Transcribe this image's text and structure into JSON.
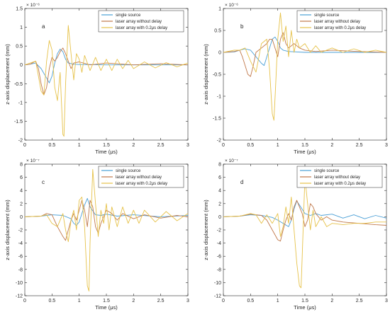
{
  "colors": {
    "single": "#4a9fd6",
    "nodelay": "#c0784a",
    "delay": "#e6c24a"
  },
  "legend_entries": [
    "single source",
    "laser array without delay",
    "laser array with 0.2μs delay"
  ],
  "chart_data": [
    {
      "type": "line",
      "panel_label": "a",
      "exponent": "× 10⁻⁶",
      "xlabel": "Time (μs)",
      "ylabel": "z-axis displacement (mm)",
      "xlim": [
        0,
        3
      ],
      "ylim": [
        -2,
        1.5
      ],
      "xticks": [
        "0",
        "0.5",
        "1",
        "1.5",
        "2",
        "2.5",
        "3"
      ],
      "yticks": [
        "1.5",
        "1",
        "0.5",
        "0",
        "-0.5",
        "-1",
        "-1.5",
        "-2"
      ],
      "legend_position": "top-right",
      "series": [
        {
          "name": "single source",
          "x": [
            0,
            0.1,
            0.2,
            0.3,
            0.4,
            0.45,
            0.5,
            0.55,
            0.6,
            0.65,
            0.7,
            0.75,
            0.8,
            0.9,
            1.0,
            1.2,
            1.5,
            2.0,
            2.5,
            3.0
          ],
          "y": [
            0,
            0.02,
            0.05,
            -0.1,
            -0.35,
            -0.48,
            -0.3,
            0.05,
            0.3,
            0.42,
            0.35,
            0.15,
            0.05,
            0.02,
            0.01,
            0.01,
            0.0,
            0.0,
            0.0,
            0.0
          ]
        },
        {
          "name": "laser array without delay",
          "x": [
            0,
            0.1,
            0.2,
            0.25,
            0.3,
            0.35,
            0.4,
            0.45,
            0.5,
            0.55,
            0.6,
            0.65,
            0.7,
            0.75,
            0.8,
            0.85,
            0.9,
            1.0,
            1.2,
            1.5,
            2.0,
            2.5,
            3.0
          ],
          "y": [
            0,
            0.02,
            0.1,
            -0.1,
            -0.5,
            -0.8,
            -0.6,
            -0.1,
            0.2,
            0.1,
            0.2,
            0.35,
            0.45,
            0.3,
            0.1,
            -0.1,
            0.05,
            0.08,
            0.0,
            0.05,
            0.0,
            0.03,
            0.0
          ]
        },
        {
          "name": "laser array with 0.2μs delay",
          "x": [
            0,
            0.1,
            0.2,
            0.25,
            0.3,
            0.35,
            0.4,
            0.45,
            0.5,
            0.55,
            0.6,
            0.65,
            0.7,
            0.72,
            0.75,
            0.8,
            0.85,
            0.9,
            0.95,
            1.0,
            1.05,
            1.1,
            1.2,
            1.3,
            1.4,
            1.5,
            1.6,
            1.7,
            1.8,
            1.9,
            2.0,
            2.2,
            2.4,
            2.6,
            2.8,
            3.0
          ],
          "y": [
            0,
            0.05,
            0.1,
            -0.3,
            -0.7,
            -0.8,
            0.1,
            0.65,
            0.4,
            -0.6,
            -0.95,
            -0.2,
            -1.85,
            -1.9,
            -0.5,
            1.05,
            0.3,
            -0.4,
            0.3,
            0.15,
            -0.2,
            0.25,
            -0.15,
            0.2,
            -0.15,
            0.15,
            -0.15,
            0.15,
            -0.1,
            0.12,
            -0.1,
            0.08,
            -0.08,
            0.06,
            -0.05,
            0.05
          ]
        }
      ]
    },
    {
      "type": "line",
      "panel_label": "b",
      "exponent": "× 10⁻⁶",
      "xlabel": "Time (μs)",
      "ylabel": "z-axis displacement (mm)",
      "xlim": [
        0,
        3
      ],
      "ylim": [
        -2,
        1
      ],
      "xticks": [
        "0",
        "0.5",
        "1",
        "1.5",
        "2",
        "2.5",
        "3"
      ],
      "yticks": [
        "1",
        "0.5",
        "0",
        "-0.5",
        "-1",
        "-1.5",
        "-2"
      ],
      "legend_position": "top-right",
      "series": [
        {
          "name": "single source",
          "x": [
            0,
            0.2,
            0.3,
            0.4,
            0.5,
            0.6,
            0.7,
            0.75,
            0.8,
            0.85,
            0.9,
            0.95,
            1.0,
            1.05,
            1.1,
            1.2,
            1.5,
            2.0,
            2.5,
            3.0
          ],
          "y": [
            0,
            0.01,
            0.05,
            0.08,
            0.05,
            -0.1,
            -0.25,
            -0.3,
            -0.1,
            0.1,
            0.3,
            0.35,
            0.25,
            0.1,
            0.05,
            0.02,
            0.0,
            0.0,
            0.0,
            0.0
          ]
        },
        {
          "name": "laser array without delay",
          "x": [
            0,
            0.2,
            0.3,
            0.35,
            0.4,
            0.45,
            0.5,
            0.55,
            0.6,
            0.7,
            0.8,
            0.85,
            0.9,
            0.95,
            1.0,
            1.05,
            1.1,
            1.15,
            1.2,
            1.3,
            1.4,
            1.5,
            1.7,
            2.0,
            2.5,
            3.0
          ],
          "y": [
            0,
            0.02,
            0.05,
            -0.1,
            -0.3,
            -0.5,
            -0.55,
            -0.3,
            0.0,
            0.1,
            0.2,
            0.3,
            0.3,
            0.1,
            -0.1,
            0.3,
            0.45,
            0.2,
            0.1,
            0.2,
            0.1,
            0.05,
            0.02,
            0.05,
            0.02,
            0.0
          ]
        },
        {
          "name": "laser array with 0.2μs delay",
          "x": [
            0,
            0.2,
            0.3,
            0.4,
            0.5,
            0.6,
            0.7,
            0.8,
            0.85,
            0.9,
            0.93,
            0.96,
            1.0,
            1.05,
            1.1,
            1.15,
            1.2,
            1.25,
            1.3,
            1.35,
            1.4,
            1.5,
            1.6,
            1.7,
            1.8,
            2.0,
            2.2,
            2.4,
            2.6,
            2.8,
            3.0
          ],
          "y": [
            0,
            0.05,
            0.05,
            0.1,
            -0.2,
            -0.45,
            0.2,
            0.3,
            -0.4,
            -1.4,
            -1.55,
            -0.8,
            0.3,
            0.9,
            0.25,
            0.6,
            -0.1,
            0.5,
            0.0,
            0.3,
            0.1,
            0.2,
            0.0,
            0.15,
            0.0,
            0.1,
            0.0,
            0.08,
            0.0,
            0.05,
            0.0
          ]
        }
      ]
    },
    {
      "type": "line",
      "panel_label": "c",
      "exponent": "× 10⁻⁷",
      "xlabel": "Time (μs)",
      "ylabel": "z-axis displacement (mm)",
      "xlim": [
        0,
        3
      ],
      "ylim": [
        -12,
        8
      ],
      "xticks": [
        "0",
        "0.5",
        "1",
        "1.5",
        "2",
        "2.5",
        "3"
      ],
      "yticks": [
        "8",
        "6",
        "4",
        "2",
        "0",
        "-2",
        "-4",
        "-6",
        "-8",
        "-10",
        "-12"
      ],
      "legend_position": "top-right",
      "series": [
        {
          "name": "single source",
          "x": [
            0,
            0.3,
            0.5,
            0.7,
            0.85,
            0.9,
            0.95,
            1.0,
            1.05,
            1.1,
            1.15,
            1.2,
            1.3,
            1.4,
            1.5,
            1.7,
            2.0,
            2.5,
            3.0
          ],
          "y": [
            0,
            0.1,
            0.3,
            0.2,
            -0.3,
            -1.0,
            -1.3,
            -0.8,
            0.5,
            1.8,
            2.8,
            1.5,
            0.3,
            0.2,
            0.4,
            0.1,
            0.3,
            0.0,
            0.2
          ]
        },
        {
          "name": "laser array without delay",
          "x": [
            0,
            0.3,
            0.4,
            0.5,
            0.6,
            0.7,
            0.75,
            0.8,
            0.85,
            0.9,
            0.95,
            1.0,
            1.05,
            1.1,
            1.15,
            1.2,
            1.25,
            1.3,
            1.35,
            1.4,
            1.5,
            1.6,
            1.7,
            1.8,
            2.0,
            2.2,
            2.5,
            2.8,
            3.0
          ],
          "y": [
            0,
            0.1,
            0.5,
            0.3,
            -1.5,
            -3.0,
            -3.6,
            -2.0,
            -0.5,
            0.5,
            -0.5,
            1.0,
            2.5,
            1.0,
            -1.5,
            2.5,
            1.5,
            -1.5,
            -2.5,
            -1.0,
            1.0,
            0.5,
            -0.5,
            0.5,
            -0.3,
            0.3,
            -0.2,
            0.2,
            0.0
          ]
        },
        {
          "name": "laser array with 0.2μs delay",
          "x": [
            0,
            0.3,
            0.4,
            0.5,
            0.6,
            0.7,
            0.75,
            0.8,
            0.85,
            0.9,
            0.95,
            1.0,
            1.05,
            1.1,
            1.15,
            1.18,
            1.2,
            1.25,
            1.3,
            1.35,
            1.4,
            1.45,
            1.5,
            1.55,
            1.6,
            1.7,
            1.8,
            1.9,
            2.0,
            2.1,
            2.2,
            2.4,
            2.6,
            2.8,
            3.0
          ],
          "y": [
            0,
            0.1,
            0.3,
            -1.0,
            -1.5,
            0.5,
            -2.0,
            -3.8,
            -0.5,
            1.0,
            -2.0,
            2.5,
            3.0,
            -1.5,
            -10.5,
            -11.3,
            -4.0,
            7.2,
            2.0,
            -3.0,
            1.0,
            -1.0,
            2.0,
            -2.0,
            1.5,
            -1.5,
            1.5,
            -1.0,
            1.0,
            -1.0,
            1.0,
            -0.8,
            0.8,
            -0.6,
            0.5
          ]
        }
      ]
    },
    {
      "type": "line",
      "panel_label": "d",
      "exponent": "× 10⁻⁷",
      "xlabel": "Time (μs)",
      "ylabel": "z-axis displacement (mm)",
      "xlim": [
        0,
        3
      ],
      "ylim": [
        -12,
        8
      ],
      "xticks": [
        "0",
        "0.5",
        "1",
        "1.5",
        "2",
        "2.5",
        "3"
      ],
      "yticks": [
        "8",
        "6",
        "4",
        "2",
        "0",
        "-2",
        "-4",
        "-6",
        "-8",
        "-10",
        "-12"
      ],
      "legend_position": "top-right",
      "series": [
        {
          "name": "single source",
          "x": [
            0,
            0.3,
            0.5,
            0.7,
            0.9,
            1.0,
            1.1,
            1.2,
            1.25,
            1.3,
            1.35,
            1.4,
            1.5,
            1.6,
            1.7,
            1.8,
            2.0,
            2.2,
            2.4,
            2.6,
            2.8,
            3.0
          ],
          "y": [
            0,
            0.1,
            0.3,
            0.2,
            -0.1,
            -0.5,
            -1.0,
            -1.5,
            -0.5,
            1.2,
            2.4,
            1.8,
            0.5,
            0.2,
            0.5,
            0.2,
            0.4,
            -0.2,
            0.3,
            -0.3,
            0.2,
            -0.2
          ]
        },
        {
          "name": "laser array without delay",
          "x": [
            0,
            0.3,
            0.5,
            0.7,
            0.8,
            0.9,
            1.0,
            1.05,
            1.1,
            1.15,
            1.2,
            1.25,
            1.3,
            1.35,
            1.4,
            1.45,
            1.5,
            1.55,
            1.6,
            1.65,
            1.7,
            1.8,
            1.9,
            2.0,
            2.2,
            2.5,
            2.8,
            3.0
          ],
          "y": [
            0,
            0.1,
            0.4,
            0.2,
            -0.5,
            -2.0,
            -3.5,
            -3.7,
            -2.0,
            -0.5,
            0.5,
            -0.5,
            1.5,
            2.5,
            1.5,
            0.5,
            -1.5,
            -0.5,
            2.0,
            1.5,
            0.5,
            -0.5,
            0.0,
            -0.5,
            -0.8,
            -1.0,
            -1.2,
            -1.3
          ]
        },
        {
          "name": "laser array with 0.2μs delay",
          "x": [
            0,
            0.3,
            0.5,
            0.6,
            0.7,
            0.8,
            0.9,
            1.0,
            1.05,
            1.1,
            1.15,
            1.2,
            1.25,
            1.3,
            1.35,
            1.4,
            1.43,
            1.45,
            1.5,
            1.55,
            1.6,
            1.65,
            1.7,
            1.8,
            1.9,
            2.0,
            2.2,
            2.4,
            2.6,
            2.8,
            3.0
          ],
          "y": [
            0,
            0.1,
            0.5,
            0.3,
            -1.0,
            0.3,
            -1.0,
            0.5,
            -3.0,
            -1.5,
            1.5,
            -1.0,
            3.0,
            -2.0,
            -7.0,
            -10.5,
            -10.8,
            -6.0,
            6.0,
            2.0,
            -2.0,
            1.0,
            -1.5,
            0.0,
            -1.5,
            -1.0,
            -1.2,
            -1.0,
            -1.0,
            -0.8,
            -0.8
          ]
        }
      ]
    }
  ]
}
